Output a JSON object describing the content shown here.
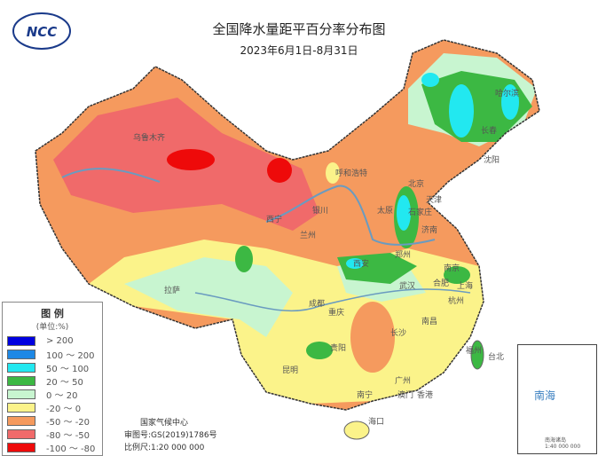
{
  "header": {
    "title": "全国降水量距平百分率分布图",
    "subtitle": "2023年6月1日-8月31日",
    "logo_text": "NCC",
    "logo_top_text": "中国"
  },
  "legend": {
    "title": "图 例",
    "unit": "(单位:%)",
    "items": [
      {
        "label": "> 200",
        "color": "#0000e0"
      },
      {
        "label": "100 ～ 200",
        "color": "#1e88e5"
      },
      {
        "label": "50 ～ 100",
        "color": "#22e8f0"
      },
      {
        "label": "20 ～ 50",
        "color": "#3cb843"
      },
      {
        "label": "0 ～ 20",
        "color": "#c8f5d0"
      },
      {
        "label": "-20 ～ 0",
        "color": "#fbf38a"
      },
      {
        "label": "-50 ～ -20",
        "color": "#f59a5e"
      },
      {
        "label": "-80 ～ -50",
        "color": "#f06a6a"
      },
      {
        "label": "-100 ～ -80",
        "color": "#ee0a0a"
      }
    ]
  },
  "credits": {
    "agency": "国家气候中心",
    "approval": "审图号:GS(2019)1786号",
    "scale": "比例尺:1:20 000 000"
  },
  "inset": {
    "title": "南海",
    "caption": "南海诸岛",
    "scale": "1:40 000 000"
  },
  "cities": [
    "乌鲁木齐",
    "呼和浩特",
    "北京",
    "天津",
    "石家庄",
    "太原",
    "济南",
    "银川",
    "西宁",
    "兰州",
    "郑州",
    "西安",
    "哈尔滨",
    "长春",
    "沈阳",
    "拉萨",
    "成都",
    "重庆",
    "武汉",
    "合肥",
    "南京",
    "上海",
    "杭州",
    "长沙",
    "南昌",
    "贵阳",
    "昆明",
    "福州",
    "台北",
    "广州",
    "南宁",
    "澳门",
    "香港",
    "海口"
  ]
}
